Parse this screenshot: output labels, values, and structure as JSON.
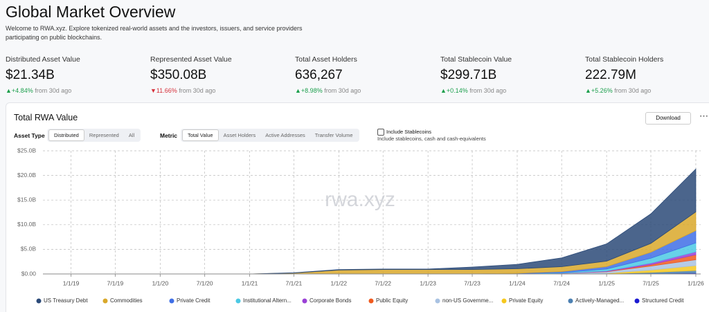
{
  "header": {
    "title": "Global Market Overview",
    "subtitle": "Welcome to RWA.xyz. Explore tokenized real-world assets and the investors, issuers, and service providers participating on public blockchains."
  },
  "stats": [
    {
      "label": "Distributed Asset Value",
      "value": "$21.34B",
      "change": "+4.84%",
      "trend": "up",
      "note": "from 30d ago"
    },
    {
      "label": "Represented Asset Value",
      "value": "$350.08B",
      "change": "11.66%",
      "trend": "down",
      "note": "from 30d ago"
    },
    {
      "label": "Total Asset Holders",
      "value": "636,267",
      "change": "+8.98%",
      "trend": "up",
      "note": "from 30d ago"
    },
    {
      "label": "Total Stablecoin Value",
      "value": "$299.71B",
      "change": "+0.14%",
      "trend": "up",
      "note": "from 30d ago"
    },
    {
      "label": "Total Stablecoin Holders",
      "value": "222.79M",
      "change": "+5.26%",
      "trend": "up",
      "note": "from 30d ago"
    }
  ],
  "card": {
    "title": "Total RWA Value",
    "download": "Download",
    "asset_type_label": "Asset Type",
    "asset_type_options": [
      "Distributed",
      "Represented",
      "All"
    ],
    "metric_label": "Metric",
    "metric_options": [
      "Total Value",
      "Asset Holders",
      "Active Addresses",
      "Transfer Volume"
    ],
    "stablecoin_label": "Include Stablecoins",
    "stablecoin_note": "Include stablecoins, cash and cash-equivalents"
  },
  "chart_data": {
    "type": "stacked-area",
    "watermark": "rwa.xyz",
    "x": [
      "1/1/19",
      "7/1/19",
      "1/1/20",
      "7/1/20",
      "1/1/21",
      "7/1/21",
      "1/1/22",
      "7/1/22",
      "1/1/23",
      "7/1/23",
      "1/1/24",
      "7/1/24",
      "1/1/25",
      "7/1/25",
      "1/1/26"
    ],
    "xlim": [
      "9/8/18",
      "1/21/26"
    ],
    "xticks": [
      "1/1/19",
      "7/1/19",
      "1/1/20",
      "7/1/20",
      "1/1/21",
      "7/1/21",
      "1/1/22",
      "7/1/22",
      "1/1/23",
      "7/1/23",
      "1/1/24",
      "7/1/24",
      "1/1/25",
      "7/1/25",
      "1/1/26"
    ],
    "ylim": [
      0,
      25
    ],
    "yticks": [
      {
        "value": 0,
        "label": "$0.00"
      },
      {
        "value": 5,
        "label": "$5.0B"
      },
      {
        "value": 10,
        "label": "$10.0B"
      },
      {
        "value": 15,
        "label": "$15.0B"
      },
      {
        "value": 20,
        "label": "$20.0B"
      },
      {
        "value": 25,
        "label": "$25.0B"
      }
    ],
    "grid": true,
    "series": [
      {
        "name": "US Treasury Debt",
        "color": "#2b4a78",
        "values": [
          0,
          0,
          0,
          0,
          0,
          0.05,
          0.1,
          0.1,
          0.1,
          0.5,
          0.9,
          1.8,
          3.5,
          6,
          8.7
        ]
      },
      {
        "name": "Commodities",
        "color": "#d9a82a",
        "values": [
          0,
          0,
          0,
          0,
          0,
          0.2,
          0.8,
          0.9,
          0.9,
          0.9,
          0.9,
          1.0,
          1.1,
          1.8,
          3.8
        ]
      },
      {
        "name": "Private Credit",
        "color": "#3f6fe6",
        "values": [
          0,
          0,
          0,
          0,
          0,
          0,
          0,
          0,
          0,
          0,
          0.1,
          0.2,
          0.5,
          1.2,
          2.5
        ]
      },
      {
        "name": "Institutional Altern...",
        "color": "#4cc9e4",
        "values": [
          0,
          0,
          0,
          0,
          0,
          0,
          0,
          0,
          0,
          0,
          0,
          0.1,
          0.4,
          1.0,
          1.8
        ]
      },
      {
        "name": "Corporate Bonds",
        "color": "#9a40d6",
        "values": [
          0,
          0,
          0,
          0,
          0,
          0,
          0,
          0,
          0,
          0,
          0,
          0.05,
          0.1,
          0.3,
          0.6
        ]
      },
      {
        "name": "Public Equity",
        "color": "#f05a1e",
        "values": [
          0,
          0,
          0,
          0,
          0,
          0,
          0,
          0,
          0,
          0,
          0,
          0,
          0.05,
          0.3,
          1.0
        ]
      },
      {
        "name": "non-US Governme...",
        "color": "#a9c2e2",
        "values": [
          0,
          0,
          0,
          0,
          0,
          0,
          0,
          0,
          0,
          0,
          0.05,
          0.1,
          0.3,
          0.8,
          1.2
        ]
      },
      {
        "name": "Private Equity",
        "color": "#f6c81e",
        "values": [
          0,
          0,
          0,
          0,
          0,
          0,
          0,
          0,
          0,
          0,
          0,
          0,
          0.1,
          0.5,
          1.0
        ]
      },
      {
        "name": "Actively-Managed...",
        "color": "#4c80b2",
        "values": [
          0,
          0,
          0,
          0,
          0,
          0,
          0,
          0,
          0,
          0,
          0,
          0,
          0,
          0.2,
          0.5
        ]
      },
      {
        "name": "Structured Credit",
        "color": "#1c1ad2",
        "values": [
          0,
          0,
          0,
          0,
          0,
          0,
          0,
          0,
          0,
          0,
          0,
          0.02,
          0.05,
          0.1,
          0.2
        ]
      }
    ]
  }
}
